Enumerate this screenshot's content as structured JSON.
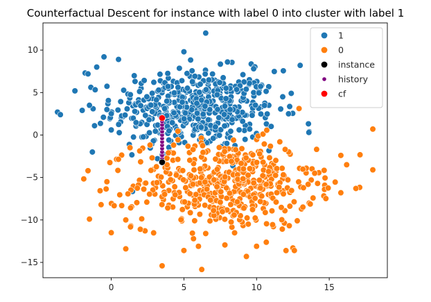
{
  "chart_data": {
    "type": "scatter",
    "title": "Counterfactual Descent for instance with label 0 into cluster with label 1",
    "xlabel": "",
    "ylabel": "",
    "xlim": [
      -4.7,
      19.0
    ],
    "ylim": [
      -16.8,
      13.2
    ],
    "x_ticks": [
      0,
      5,
      10,
      15
    ],
    "y_ticks": [
      -15,
      -10,
      -5,
      0,
      5,
      10
    ],
    "grid": false,
    "legend_position": "top-right",
    "legend": [
      {
        "label": "1",
        "color": "#1f77b4",
        "marker": "circle"
      },
      {
        "label": "0",
        "color": "#ff7f0e",
        "marker": "circle"
      },
      {
        "label": "instance",
        "color": "#000000",
        "marker": "circle"
      },
      {
        "label": "history",
        "color": "#800080",
        "marker": "circle-small"
      },
      {
        "label": "cf",
        "color": "#ff0000",
        "marker": "circle"
      }
    ],
    "series": [
      {
        "name": "1",
        "color": "#1f77b4",
        "distribution": {
          "center_x": 5.8,
          "center_y": 3.0,
          "std_x": 2.8,
          "std_y": 2.3,
          "count": 500
        },
        "outliers": [
          [
            6.5,
            12.0
          ],
          [
            -0.5,
            9.2
          ],
          [
            0.5,
            8.9
          ],
          [
            -1.0,
            8.0
          ],
          [
            -3.7,
            2.7
          ],
          [
            -3.5,
            2.4
          ],
          [
            -2.5,
            5.2
          ],
          [
            -1.8,
            7.3
          ],
          [
            -1.6,
            7.2
          ],
          [
            -1.5,
            3.5
          ],
          [
            -1.3,
            -2.0
          ],
          [
            -0.3,
            3.0
          ],
          [
            13.0,
            8.2
          ],
          [
            11.8,
            4.5
          ],
          [
            12.2,
            2.5
          ],
          [
            13.6,
            0.3
          ],
          [
            8.0,
            8.6
          ],
          [
            5.0,
            9.8
          ],
          [
            9.8,
            7.8
          ],
          [
            -2.0,
            2.9
          ],
          [
            0.0,
            0.6
          ]
        ]
      },
      {
        "name": "0",
        "color": "#ff7f0e",
        "distribution": {
          "center_x": 7.8,
          "center_y": -5.8,
          "std_x": 3.1,
          "std_y": 2.6,
          "count": 500
        },
        "outliers": [
          [
            3.5,
            -15.4
          ],
          [
            -1.6,
            -4.2
          ],
          [
            -1.5,
            -9.9
          ],
          [
            -0.7,
            -8.2
          ],
          [
            1.0,
            -13.4
          ],
          [
            0.0,
            -11.5
          ],
          [
            18.0,
            0.7
          ],
          [
            18.0,
            -4.1
          ],
          [
            16.2,
            -3.5
          ],
          [
            15.8,
            -6.8
          ],
          [
            15.8,
            -2.4
          ],
          [
            12.5,
            -13.3
          ],
          [
            12.6,
            -13.6
          ],
          [
            9.3,
            -14.3
          ],
          [
            6.0,
            -13.1
          ],
          [
            5.0,
            -13.6
          ],
          [
            10.0,
            -13.1
          ],
          [
            14.0,
            -4.5
          ],
          [
            14.2,
            -5.7
          ],
          [
            -0.3,
            -5.5
          ],
          [
            12.8,
            -10.1
          ],
          [
            2.0,
            -11.1
          ],
          [
            1.0,
            -10.0
          ],
          [
            6.5,
            -11.6
          ],
          [
            11.6,
            -0.8
          ]
        ]
      },
      {
        "name": "history",
        "color": "#800080",
        "points": [
          [
            3.5,
            -3.2
          ],
          [
            3.5,
            -2.8
          ],
          [
            3.5,
            -2.4
          ],
          [
            3.5,
            -2.0
          ],
          [
            3.5,
            -1.6
          ],
          [
            3.5,
            -1.2
          ],
          [
            3.5,
            -0.8
          ],
          [
            3.5,
            -0.4
          ],
          [
            3.5,
            0.0
          ],
          [
            3.5,
            0.4
          ],
          [
            3.5,
            0.8
          ],
          [
            3.5,
            1.2
          ],
          [
            3.5,
            1.6
          ],
          [
            3.5,
            2.0
          ]
        ]
      },
      {
        "name": "instance",
        "color": "#000000",
        "points": [
          [
            3.5,
            -3.2
          ]
        ]
      },
      {
        "name": "cf",
        "color": "#ff0000",
        "points": [
          [
            3.5,
            2.0
          ]
        ]
      }
    ]
  }
}
